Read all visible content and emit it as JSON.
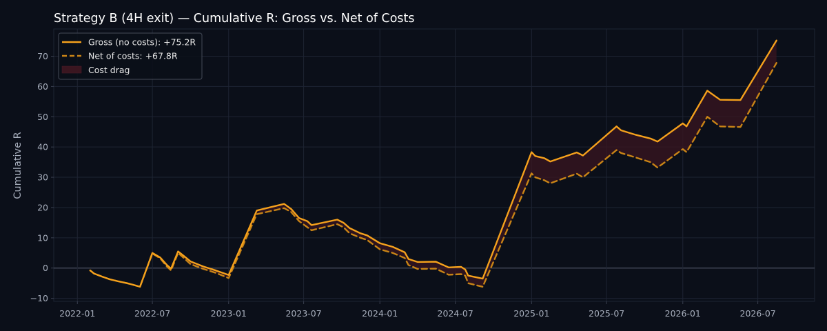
{
  "chart_data": {
    "type": "line",
    "title": "Strategy B (4H exit) — Cumulative R: Gross vs. Net of Costs",
    "xlabel": "",
    "ylabel": "Cumulative R",
    "xlim": [
      "2021-11-05",
      "2026-11-15"
    ],
    "ylim": [
      -11,
      79
    ],
    "grid": true,
    "legend_position": "top-left",
    "x_ticks": [
      "2022-01",
      "2022-07",
      "2023-01",
      "2023-07",
      "2024-01",
      "2024-07",
      "2025-01",
      "2025-07",
      "2026-01",
      "2026-07"
    ],
    "y_ticks": [
      -10,
      0,
      10,
      20,
      30,
      40,
      50,
      60,
      70
    ],
    "series": [
      {
        "name": "Gross (no costs): +75.2R",
        "style": "solid",
        "color": "#f5a11c",
        "points": [
          [
            "2022-02-01",
            -0.8
          ],
          [
            "2022-02-10",
            -1.8
          ],
          [
            "2022-03-01",
            -2.8
          ],
          [
            "2022-03-20",
            -3.7
          ],
          [
            "2022-04-10",
            -4.4
          ],
          [
            "2022-05-01",
            -5.0
          ],
          [
            "2022-05-15",
            -5.5
          ],
          [
            "2022-06-01",
            -6.2
          ],
          [
            "2022-07-01",
            5.0
          ],
          [
            "2022-07-20",
            3.5
          ],
          [
            "2022-08-05",
            1.0
          ],
          [
            "2022-08-15",
            -0.2
          ],
          [
            "2022-09-01",
            5.5
          ],
          [
            "2022-09-15",
            4.0
          ],
          [
            "2022-10-01",
            2.2
          ],
          [
            "2022-11-01",
            0.5
          ],
          [
            "2022-12-01",
            -0.8
          ],
          [
            "2023-01-01",
            -2.3
          ],
          [
            "2023-03-10",
            19.0
          ],
          [
            "2023-05-15",
            21.2
          ],
          [
            "2023-06-01",
            19.5
          ],
          [
            "2023-06-20",
            16.5
          ],
          [
            "2023-07-10",
            15.5
          ],
          [
            "2023-07-20",
            14.2
          ],
          [
            "2023-09-20",
            16.0
          ],
          [
            "2023-10-05",
            15.0
          ],
          [
            "2023-10-20",
            13.2
          ],
          [
            "2023-11-15",
            11.5
          ],
          [
            "2023-12-01",
            10.8
          ],
          [
            "2024-01-01",
            8.2
          ],
          [
            "2024-02-01",
            7.0
          ],
          [
            "2024-03-01",
            5.2
          ],
          [
            "2024-03-10",
            3.0
          ],
          [
            "2024-04-01",
            2.0
          ],
          [
            "2024-05-15",
            2.1
          ],
          [
            "2024-06-15",
            0.2
          ],
          [
            "2024-07-15",
            0.4
          ],
          [
            "2024-07-25",
            -0.5
          ],
          [
            "2024-08-01",
            -2.5
          ],
          [
            "2024-09-05",
            -3.5
          ],
          [
            "2025-01-01",
            38.3
          ],
          [
            "2025-01-10",
            37.0
          ],
          [
            "2025-02-01",
            36.3
          ],
          [
            "2025-02-15",
            35.2
          ],
          [
            "2025-04-20",
            38.2
          ],
          [
            "2025-05-05",
            37.2
          ],
          [
            "2025-07-25",
            46.8
          ],
          [
            "2025-08-05",
            45.5
          ],
          [
            "2025-09-10",
            44.0
          ],
          [
            "2025-10-15",
            42.8
          ],
          [
            "2025-11-01",
            41.8
          ],
          [
            "2026-01-01",
            47.8
          ],
          [
            "2026-01-10",
            46.8
          ],
          [
            "2026-03-01",
            58.6
          ],
          [
            "2026-04-01",
            55.6
          ],
          [
            "2026-05-20",
            55.5
          ],
          [
            "2026-08-15",
            75.2
          ]
        ]
      },
      {
        "name": "Net of costs: +67.8R",
        "style": "dashed",
        "color": "#c98416",
        "points": [
          [
            "2022-02-01",
            -0.8
          ],
          [
            "2022-02-10",
            -1.8
          ],
          [
            "2022-03-01",
            -2.8
          ],
          [
            "2022-03-20",
            -3.7
          ],
          [
            "2022-04-10",
            -4.4
          ],
          [
            "2022-05-01",
            -5.0
          ],
          [
            "2022-05-15",
            -5.5
          ],
          [
            "2022-06-01",
            -6.2
          ],
          [
            "2022-07-01",
            4.8
          ],
          [
            "2022-07-20",
            3.2
          ],
          [
            "2022-08-05",
            0.5
          ],
          [
            "2022-08-15",
            -0.8
          ],
          [
            "2022-09-01",
            5.0
          ],
          [
            "2022-09-15",
            3.3
          ],
          [
            "2022-10-01",
            1.3
          ],
          [
            "2022-11-01",
            -0.3
          ],
          [
            "2022-12-01",
            -1.6
          ],
          [
            "2023-01-01",
            -3.3
          ],
          [
            "2023-03-10",
            17.8
          ],
          [
            "2023-05-15",
            19.8
          ],
          [
            "2023-06-01",
            18.5
          ],
          [
            "2023-06-20",
            15.5
          ],
          [
            "2023-07-10",
            13.5
          ],
          [
            "2023-07-20",
            12.5
          ],
          [
            "2023-09-20",
            14.5
          ],
          [
            "2023-10-05",
            13.5
          ],
          [
            "2023-10-20",
            11.5
          ],
          [
            "2023-11-15",
            10.0
          ],
          [
            "2023-12-01",
            9.3
          ],
          [
            "2024-01-01",
            6.2
          ],
          [
            "2024-02-01",
            5.0
          ],
          [
            "2024-03-01",
            3.3
          ],
          [
            "2024-03-10",
            1.0
          ],
          [
            "2024-04-01",
            -0.3
          ],
          [
            "2024-05-15",
            -0.2
          ],
          [
            "2024-06-15",
            -2.2
          ],
          [
            "2024-07-15",
            -2.0
          ],
          [
            "2024-07-25",
            -2.5
          ],
          [
            "2024-08-01",
            -5.0
          ],
          [
            "2024-09-05",
            -6.2
          ],
          [
            "2025-01-01",
            31.3
          ],
          [
            "2025-01-10",
            30.0
          ],
          [
            "2025-02-01",
            29.0
          ],
          [
            "2025-02-15",
            28.0
          ],
          [
            "2025-04-20",
            31.2
          ],
          [
            "2025-05-05",
            30.0
          ],
          [
            "2025-07-25",
            39.0
          ],
          [
            "2025-08-05",
            38.0
          ],
          [
            "2025-09-10",
            36.5
          ],
          [
            "2025-10-15",
            35.0
          ],
          [
            "2025-11-01",
            33.2
          ],
          [
            "2026-01-01",
            39.3
          ],
          [
            "2026-01-10",
            38.3
          ],
          [
            "2026-03-01",
            50.0
          ],
          [
            "2026-04-01",
            46.8
          ],
          [
            "2026-05-20",
            46.6
          ],
          [
            "2026-08-15",
            67.8
          ]
        ]
      }
    ],
    "fill_between": {
      "name": "Cost drag",
      "color": "#3a1620"
    }
  },
  "colors": {
    "background": "#0b0f19",
    "grid": "#1e2433",
    "axis": "#3a4050",
    "tick_text": "#a8afbd",
    "title_text": "#ffffff",
    "zero_line": "#4a5060",
    "legend_bg": "#0b0f19",
    "legend_border": "#454b58",
    "legend_text": "#e8e8e8"
  }
}
